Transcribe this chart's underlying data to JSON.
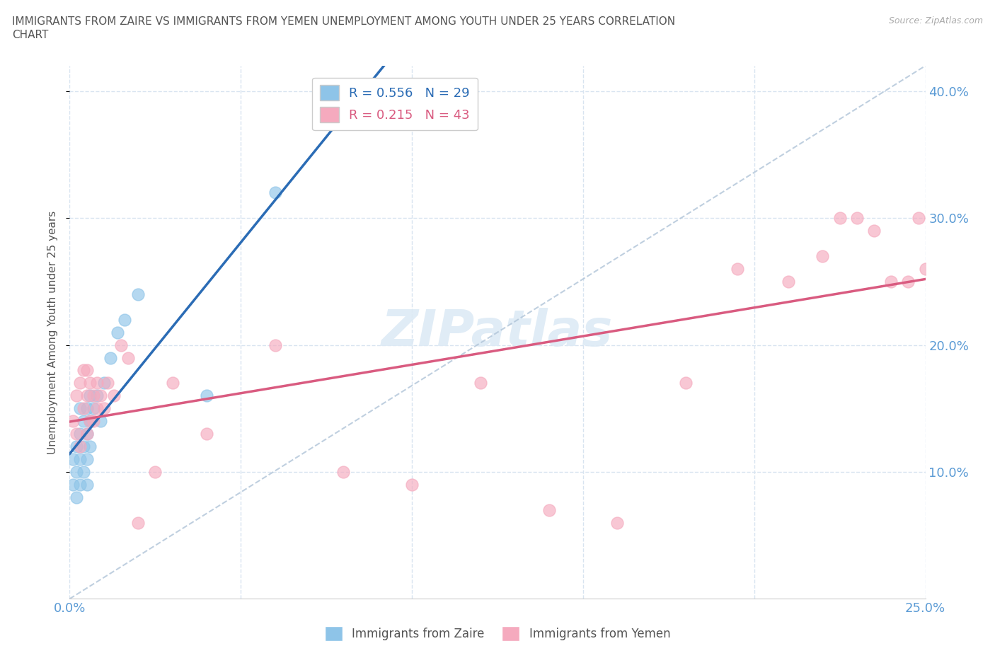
{
  "title_line1": "IMMIGRANTS FROM ZAIRE VS IMMIGRANTS FROM YEMEN UNEMPLOYMENT AMONG YOUTH UNDER 25 YEARS CORRELATION",
  "title_line2": "CHART",
  "source": "Source: ZipAtlas.com",
  "ylabel": "Unemployment Among Youth under 25 years",
  "xlim": [
    0.0,
    0.25
  ],
  "ylim": [
    0.0,
    0.42
  ],
  "xticks": [
    0.0,
    0.05,
    0.1,
    0.15,
    0.2,
    0.25
  ],
  "yticks": [
    0.1,
    0.2,
    0.3,
    0.4
  ],
  "zaire_R": 0.556,
  "zaire_N": 29,
  "yemen_R": 0.215,
  "yemen_N": 43,
  "zaire_color": "#8ec4e8",
  "yemen_color": "#f5aabe",
  "zaire_line_color": "#2b6cb5",
  "yemen_line_color": "#d95b80",
  "ref_line_color": "#b0c4d8",
  "watermark": "ZIPatlas",
  "background_color": "#ffffff",
  "grid_color": "#d8e4f0",
  "tick_label_color": "#5b9bd5",
  "zaire_x": [
    0.001,
    0.001,
    0.002,
    0.002,
    0.002,
    0.003,
    0.003,
    0.003,
    0.003,
    0.004,
    0.004,
    0.004,
    0.005,
    0.005,
    0.005,
    0.005,
    0.006,
    0.006,
    0.006,
    0.007,
    0.008,
    0.009,
    0.01,
    0.012,
    0.014,
    0.016,
    0.02,
    0.04,
    0.06
  ],
  "zaire_y": [
    0.09,
    0.11,
    0.08,
    0.1,
    0.12,
    0.09,
    0.11,
    0.13,
    0.15,
    0.1,
    0.12,
    0.14,
    0.09,
    0.11,
    0.13,
    0.15,
    0.12,
    0.14,
    0.16,
    0.15,
    0.16,
    0.14,
    0.17,
    0.19,
    0.21,
    0.22,
    0.24,
    0.16,
    0.32
  ],
  "yemen_x": [
    0.001,
    0.002,
    0.002,
    0.003,
    0.003,
    0.004,
    0.004,
    0.005,
    0.005,
    0.005,
    0.006,
    0.006,
    0.007,
    0.007,
    0.008,
    0.008,
    0.009,
    0.01,
    0.011,
    0.013,
    0.015,
    0.017,
    0.02,
    0.025,
    0.03,
    0.04,
    0.06,
    0.08,
    0.1,
    0.12,
    0.14,
    0.16,
    0.18,
    0.195,
    0.21,
    0.22,
    0.225,
    0.23,
    0.235,
    0.24,
    0.245,
    0.248,
    0.25
  ],
  "yemen_y": [
    0.14,
    0.13,
    0.16,
    0.12,
    0.17,
    0.15,
    0.18,
    0.13,
    0.16,
    0.18,
    0.14,
    0.17,
    0.14,
    0.16,
    0.15,
    0.17,
    0.16,
    0.15,
    0.17,
    0.16,
    0.2,
    0.19,
    0.06,
    0.1,
    0.17,
    0.13,
    0.2,
    0.1,
    0.09,
    0.17,
    0.07,
    0.06,
    0.17,
    0.26,
    0.25,
    0.27,
    0.3,
    0.3,
    0.29,
    0.25,
    0.25,
    0.3,
    0.26
  ]
}
